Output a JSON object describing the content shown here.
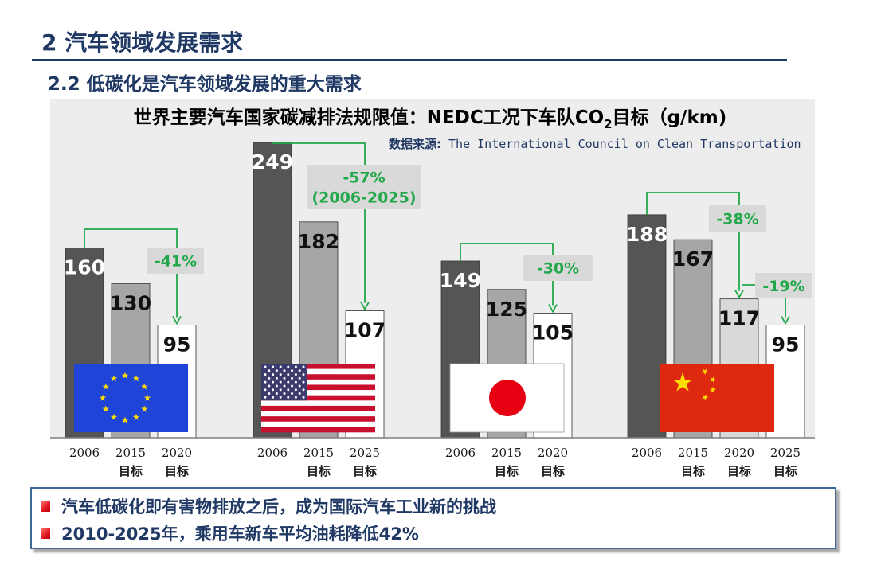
{
  "header": {
    "title": "2  汽车领域发展需求",
    "subtitle": "2.2  低碳化是汽车领域发展的重大需求"
  },
  "chart_data": {
    "type": "bar",
    "title_main": "世界主要汽车国家碳减排法规限值：NEDC工况下车队CO",
    "title_sub": "2",
    "title_tail": "目标（g/km)",
    "source_label": "数据来源:",
    "source_text": " The International Council on Clean Transportation",
    "ylabel": "",
    "groups": [
      {
        "flag": "eu-flag",
        "categories": [
          "2006",
          "2015\n目标",
          "2020\n目标"
        ],
        "values": [
          160,
          130,
          95
        ],
        "annotation": {
          "text": [
            "-41%"
          ],
          "from": 0,
          "to": 2
        }
      },
      {
        "flag": "us-flag",
        "categories": [
          "2006",
          "2015\n目标",
          "2025\n目标"
        ],
        "values": [
          249,
          182,
          107
        ],
        "annotation": {
          "text": [
            "-57%",
            "(2006-2025)"
          ],
          "from": 0,
          "to": 2
        }
      },
      {
        "flag": "japan-flag",
        "categories": [
          "2006",
          "2015\n目标",
          "2020\n目标"
        ],
        "values": [
          149,
          125,
          105
        ],
        "annotation": {
          "text": [
            "-30%"
          ],
          "from": 0,
          "to": 2
        }
      },
      {
        "flag": "china-flag",
        "categories": [
          "2006",
          "2015\n目标",
          "2020\n目标",
          "2025\n目标"
        ],
        "values": [
          188,
          167,
          117,
          95
        ],
        "annotation": {
          "text": [
            "-38%"
          ],
          "from": 0,
          "to": 2
        },
        "annotation2": {
          "text": [
            "-19%"
          ],
          "from": 2,
          "to": 3
        }
      }
    ],
    "colors": {
      "bar_2006": "#555555",
      "bar_2015": "#a6a6a6",
      "bar_target": "#d9d9d9",
      "bar_last": "#ffffff",
      "annotation": "#22a84a",
      "panel": "#ededed"
    }
  },
  "summary": {
    "items": [
      "汽车低碳化即有害物排放之后，成为国际汽车工业新的挑战",
      "2010-2025年，乘用车新车平均油耗降低42%"
    ]
  }
}
